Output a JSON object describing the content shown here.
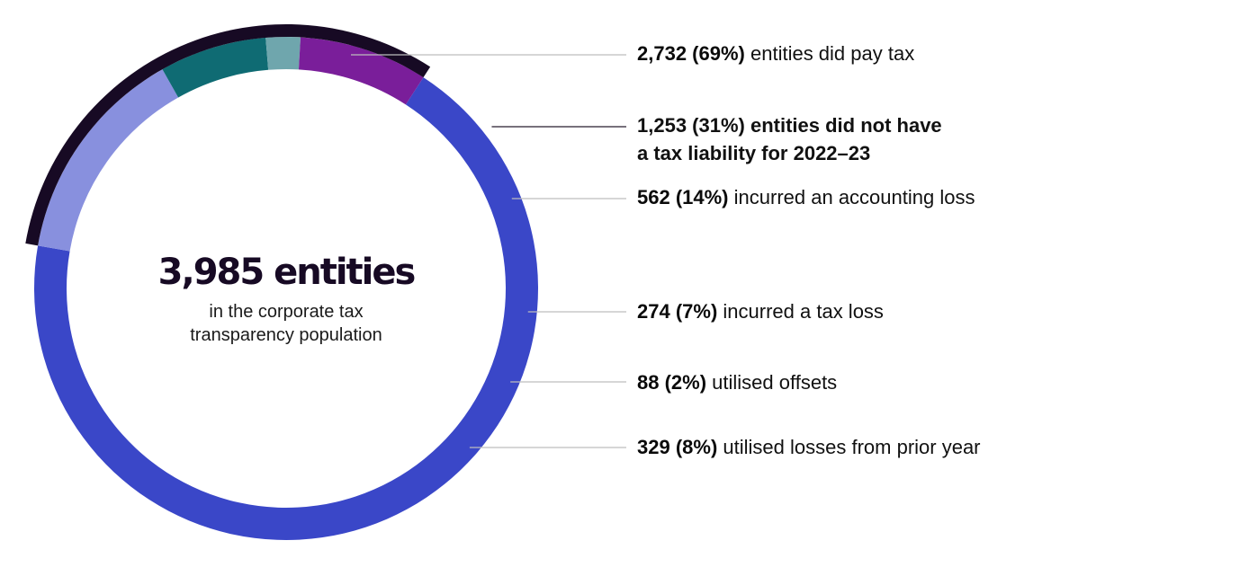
{
  "chart_data": {
    "type": "pie",
    "variant": "donut",
    "total": {
      "value": 3985,
      "title": "3,985 entities",
      "subtitle_lines": [
        "in the corporate tax",
        "transparency population"
      ]
    },
    "segments": [
      {
        "key": "pay_tax",
        "value": 2732,
        "percent": 69,
        "value_label": "2,732 (69%)",
        "text": "entities did pay tax",
        "color": "#3a47c8"
      },
      {
        "key": "accounting_loss",
        "value": 562,
        "percent": 14,
        "value_label": "562 (14%)",
        "text": "incurred an accounting loss",
        "color": "#8890de"
      },
      {
        "key": "tax_loss",
        "value": 274,
        "percent": 7,
        "value_label": "274 (7%)",
        "text": "incurred a tax loss",
        "color": "#0f6b73"
      },
      {
        "key": "offsets",
        "value": 88,
        "percent": 2,
        "value_label": "88 (2%)",
        "text": "utilised offsets",
        "color": "#6fa6ad"
      },
      {
        "key": "prior_losses",
        "value": 329,
        "percent": 8,
        "value_label": "329 (8%)",
        "text": "utilised losses from prior year",
        "color": "#7a1e9a"
      }
    ],
    "group": {
      "key": "no_tax_liability",
      "value": 1253,
      "percent": 31,
      "members": [
        "accounting_loss",
        "tax_loss",
        "offsets",
        "prior_losses"
      ],
      "label_lines": [
        "1,253 (31%) entities did not have",
        "a tax liability for 2022–23"
      ],
      "color": "#170a24"
    },
    "leader_color": "#bdbdbd",
    "group_leader_color": "#4a4250"
  }
}
